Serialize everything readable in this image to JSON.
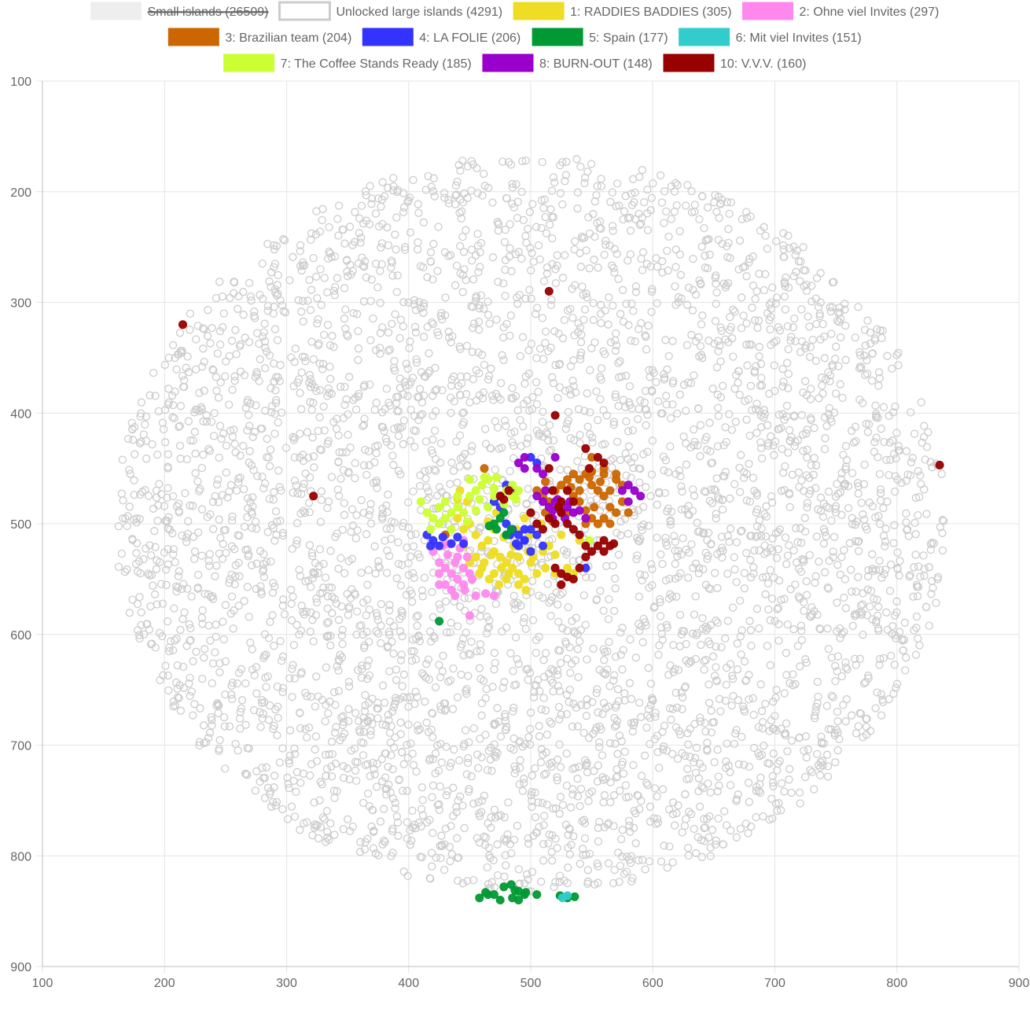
{
  "chart_data": {
    "type": "scatter",
    "title": "",
    "xlabel": "",
    "ylabel": "",
    "xlim": [
      100,
      900
    ],
    "ylim": [
      900,
      100
    ],
    "y_axis_reversed": true,
    "x_ticks": [
      "100",
      "200",
      "300",
      "400",
      "500",
      "600",
      "700",
      "800",
      "900"
    ],
    "y_ticks": [
      "100",
      "200",
      "300",
      "400",
      "500",
      "600",
      "700",
      "800",
      "900"
    ],
    "grid": true,
    "legend_position": "top",
    "legend": [
      {
        "label": "Small islands (26509)",
        "color": "#eeeeee",
        "hidden": true
      },
      {
        "label": "Unlocked large islands (4291)",
        "color": "#cccccc"
      },
      {
        "label": "1: RADDIES BADDIES (305)",
        "color": "#eedd22"
      },
      {
        "label": "2: Ohne viel Invites (297)",
        "color": "#ff88ee"
      },
      {
        "label": "3: Brazilian team (204)",
        "color": "#cc6600"
      },
      {
        "label": "4: LA FOLIE (206)",
        "color": "#3333ff"
      },
      {
        "label": "5: Spain (177)",
        "color": "#009933"
      },
      {
        "label": "6: Mit viel Invites (151)",
        "color": "#33cccc"
      },
      {
        "label": "7: The Coffee Stands Ready (185)",
        "color": "#ccff33"
      },
      {
        "label": "8: BURN-OUT (148)",
        "color": "#9900cc"
      },
      {
        "label": "10: V.V.V. (160)",
        "color": "#990000"
      }
    ],
    "series": [
      {
        "legend_index": 1,
        "name": "Unlocked large islands (4291)",
        "color": "#cccccc",
        "filled": false,
        "distribution": {
          "center": [
            500,
            500
          ],
          "radius": 340,
          "count": 4291
        }
      },
      {
        "legend_index": 2,
        "name": "1: RADDIES BADDIES (305)",
        "color": "#eedd22",
        "filled": true,
        "points": [
          [
            440,
            495
          ],
          [
            445,
            505
          ],
          [
            450,
            500
          ],
          [
            455,
            510
          ],
          [
            460,
            520
          ],
          [
            465,
            515
          ],
          [
            470,
            525
          ],
          [
            475,
            530
          ],
          [
            480,
            535
          ],
          [
            485,
            540
          ],
          [
            490,
            545
          ],
          [
            495,
            550
          ],
          [
            460,
            540
          ],
          [
            470,
            545
          ],
          [
            480,
            550
          ],
          [
            490,
            555
          ],
          [
            500,
            535
          ],
          [
            505,
            545
          ],
          [
            510,
            525
          ],
          [
            515,
            520
          ],
          [
            470,
            505
          ],
          [
            478,
            512
          ],
          [
            486,
            520
          ],
          [
            492,
            515
          ],
          [
            498,
            525
          ],
          [
            455,
            530
          ],
          [
            462,
            535
          ],
          [
            468,
            528
          ],
          [
            476,
            540
          ],
          [
            484,
            528
          ],
          [
            488,
            505
          ],
          [
            495,
            495
          ],
          [
            500,
            510
          ],
          [
            508,
            500
          ],
          [
            512,
            540
          ],
          [
            520,
            545
          ],
          [
            525,
            510
          ],
          [
            530,
            540
          ],
          [
            535,
            545
          ],
          [
            540,
            515
          ],
          [
            445,
            520
          ],
          [
            450,
            535
          ],
          [
            458,
            545
          ],
          [
            466,
            550
          ],
          [
            474,
            555
          ],
          [
            482,
            545
          ],
          [
            490,
            530
          ],
          [
            496,
            560
          ],
          [
            502,
            530
          ],
          [
            448,
            480
          ],
          [
            440,
            478
          ],
          [
            442,
            470
          ],
          [
            520,
            528
          ],
          [
            465,
            498
          ],
          [
            472,
            490
          ]
        ]
      },
      {
        "legend_index": 3,
        "name": "2: Ohne viel Invites (297)",
        "color": "#ff88ee",
        "filled": true,
        "points": [
          [
            420,
            525
          ],
          [
            425,
            535
          ],
          [
            430,
            540
          ],
          [
            435,
            545
          ],
          [
            440,
            550
          ],
          [
            445,
            555
          ],
          [
            430,
            555
          ],
          [
            435,
            560
          ],
          [
            440,
            530
          ],
          [
            445,
            540
          ],
          [
            450,
            545
          ],
          [
            425,
            545
          ],
          [
            428,
            520
          ],
          [
            432,
            528
          ],
          [
            438,
            535
          ],
          [
            442,
            522
          ],
          [
            448,
            530
          ],
          [
            452,
            550
          ],
          [
            446,
            560
          ],
          [
            438,
            565
          ],
          [
            450,
            583
          ],
          [
            455,
            565
          ],
          [
            463,
            563
          ],
          [
            470,
            565
          ],
          [
            425,
            555
          ],
          [
            433,
            518
          ],
          [
            445,
            515
          ]
        ]
      },
      {
        "legend_index": 4,
        "name": "3: Brazilian team (204)",
        "color": "#cc6600",
        "filled": true,
        "points": [
          [
            505,
            470
          ],
          [
            510,
            475
          ],
          [
            515,
            480
          ],
          [
            520,
            470
          ],
          [
            525,
            465
          ],
          [
            530,
            460
          ],
          [
            535,
            455
          ],
          [
            540,
            460
          ],
          [
            545,
            455
          ],
          [
            550,
            465
          ],
          [
            555,
            470
          ],
          [
            560,
            475
          ],
          [
            565,
            485
          ],
          [
            570,
            490
          ],
          [
            540,
            480
          ],
          [
            545,
            488
          ],
          [
            550,
            495
          ],
          [
            555,
            500
          ],
          [
            560,
            495
          ],
          [
            565,
            470
          ],
          [
            570,
            460
          ],
          [
            575,
            480
          ],
          [
            580,
            490
          ],
          [
            535,
            475
          ],
          [
            530,
            490
          ],
          [
            522,
            485
          ],
          [
            512,
            490
          ],
          [
            560,
            455
          ],
          [
            565,
            500
          ],
          [
            545,
            500
          ],
          [
            540,
            470
          ],
          [
            550,
            440
          ],
          [
            560,
            450
          ],
          [
            570,
            455
          ],
          [
            575,
            465
          ],
          [
            552,
            485
          ],
          [
            518,
            498
          ],
          [
            430,
            510
          ],
          [
            475,
            475
          ],
          [
            462,
            450
          ],
          [
            550,
            453
          ],
          [
            548,
            458
          ],
          [
            557,
            462
          ],
          [
            533,
            467
          ],
          [
            512,
            462
          ]
        ]
      },
      {
        "legend_index": 5,
        "name": "4: LA FOLIE (206)",
        "color": "#3333ff",
        "filled": true,
        "points": [
          [
            490,
            510
          ],
          [
            495,
            515
          ],
          [
            485,
            505
          ],
          [
            480,
            500
          ],
          [
            470,
            480
          ],
          [
            475,
            475
          ],
          [
            480,
            465
          ],
          [
            485,
            470
          ],
          [
            495,
            505
          ],
          [
            500,
            505
          ],
          [
            505,
            510
          ],
          [
            510,
            520
          ],
          [
            545,
            540
          ],
          [
            500,
            440
          ],
          [
            505,
            445
          ],
          [
            495,
            515
          ],
          [
            488,
            518
          ],
          [
            483,
            510
          ],
          [
            428,
            512
          ],
          [
            435,
            518
          ],
          [
            440,
            512
          ],
          [
            445,
            518
          ],
          [
            420,
            515
          ],
          [
            425,
            520
          ],
          [
            415,
            510
          ],
          [
            418,
            520
          ],
          [
            475,
            485
          ],
          [
            490,
            520
          ],
          [
            500,
            525
          ],
          [
            480,
            510
          ]
        ]
      },
      {
        "legend_index": 6,
        "name": "5: Spain (177)",
        "color": "#009933",
        "filled": true,
        "points": [
          [
            470,
            500
          ],
          [
            475,
            495
          ],
          [
            478,
            490
          ],
          [
            472,
            505
          ],
          [
            466,
            502
          ],
          [
            480,
            510
          ],
          [
            484,
            505
          ],
          [
            458,
            838
          ],
          [
            465,
            835
          ],
          [
            475,
            840
          ],
          [
            485,
            838
          ],
          [
            490,
            840
          ],
          [
            495,
            835
          ],
          [
            505,
            835
          ],
          [
            478,
            828
          ],
          [
            484,
            826
          ],
          [
            490,
            832
          ],
          [
            463,
            833
          ],
          [
            524,
            836
          ],
          [
            530,
            838
          ],
          [
            536,
            837
          ],
          [
            425,
            588
          ],
          [
            470,
            835
          ],
          [
            496,
            833
          ],
          [
            487,
            831
          ]
        ]
      },
      {
        "legend_index": 7,
        "name": "6: Mit viel Invites (151)",
        "color": "#33cccc",
        "filled": true,
        "points": [
          [
            530,
            836
          ],
          [
            526,
            838
          ]
        ]
      },
      {
        "legend_index": 8,
        "name": "7: The Coffee Stands Ready (185)",
        "color": "#ccff33",
        "filled": true,
        "points": [
          [
            415,
            490
          ],
          [
            420,
            495
          ],
          [
            425,
            485
          ],
          [
            430,
            495
          ],
          [
            435,
            490
          ],
          [
            430,
            480
          ],
          [
            440,
            485
          ],
          [
            445,
            490
          ],
          [
            450,
            460
          ],
          [
            455,
            470
          ],
          [
            460,
            465
          ],
          [
            465,
            460
          ],
          [
            470,
            475
          ],
          [
            480,
            470
          ],
          [
            465,
            485
          ],
          [
            458,
            478
          ],
          [
            450,
            475
          ],
          [
            440,
            475
          ],
          [
            485,
            475
          ],
          [
            490,
            470
          ],
          [
            448,
            498
          ],
          [
            435,
            505
          ],
          [
            425,
            500
          ],
          [
            418,
            505
          ],
          [
            470,
            468
          ],
          [
            478,
            482
          ],
          [
            462,
            458
          ],
          [
            410,
            480
          ],
          [
            455,
            488
          ],
          [
            472,
            458
          ],
          [
            485,
            465
          ],
          [
            488,
            478
          ],
          [
            548,
            515
          ]
        ]
      },
      {
        "legend_index": 9,
        "name": "8: BURN-OUT (148)",
        "color": "#9900cc",
        "filled": true,
        "points": [
          [
            515,
            485
          ],
          [
            520,
            480
          ],
          [
            525,
            490
          ],
          [
            530,
            485
          ],
          [
            535,
            490
          ],
          [
            510,
            480
          ],
          [
            505,
            475
          ],
          [
            512,
            470
          ],
          [
            518,
            495
          ],
          [
            522,
            478
          ],
          [
            528,
            495
          ],
          [
            532,
            480
          ],
          [
            540,
            488
          ],
          [
            545,
            495
          ],
          [
            580,
            480
          ],
          [
            585,
            470
          ],
          [
            580,
            465
          ],
          [
            590,
            475
          ],
          [
            575,
            470
          ],
          [
            520,
            440
          ],
          [
            495,
            440
          ],
          [
            490,
            445
          ],
          [
            495,
            450
          ],
          [
            505,
            450
          ],
          [
            510,
            455
          ],
          [
            525,
            490
          ],
          [
            518,
            488
          ]
        ]
      },
      {
        "legend_index": 10,
        "name": "10: V.V.V. (160)",
        "color": "#990000",
        "filled": true,
        "points": [
          [
            500,
            490
          ],
          [
            505,
            500
          ],
          [
            510,
            505
          ],
          [
            515,
            495
          ],
          [
            520,
            500
          ],
          [
            525,
            490
          ],
          [
            530,
            500
          ],
          [
            535,
            505
          ],
          [
            540,
            510
          ],
          [
            545,
            520
          ],
          [
            550,
            525
          ],
          [
            555,
            520
          ],
          [
            560,
            515
          ],
          [
            565,
            520
          ],
          [
            520,
            540
          ],
          [
            525,
            545
          ],
          [
            530,
            548
          ],
          [
            535,
            550
          ],
          [
            525,
            555
          ],
          [
            540,
            540
          ],
          [
            545,
            530
          ],
          [
            555,
            440
          ],
          [
            560,
            445
          ],
          [
            548,
            450
          ],
          [
            515,
            450
          ],
          [
            518,
            470
          ],
          [
            523,
            485
          ],
          [
            530,
            470
          ],
          [
            535,
            480
          ],
          [
            525,
            480
          ],
          [
            478,
            478
          ],
          [
            482,
            470
          ],
          [
            475,
            475
          ],
          [
            560,
            525
          ],
          [
            568,
            518
          ],
          [
            215,
            320
          ],
          [
            322,
            475
          ],
          [
            520,
            402
          ],
          [
            545,
            432
          ],
          [
            835,
            447
          ],
          [
            515,
            290
          ]
        ]
      }
    ]
  }
}
